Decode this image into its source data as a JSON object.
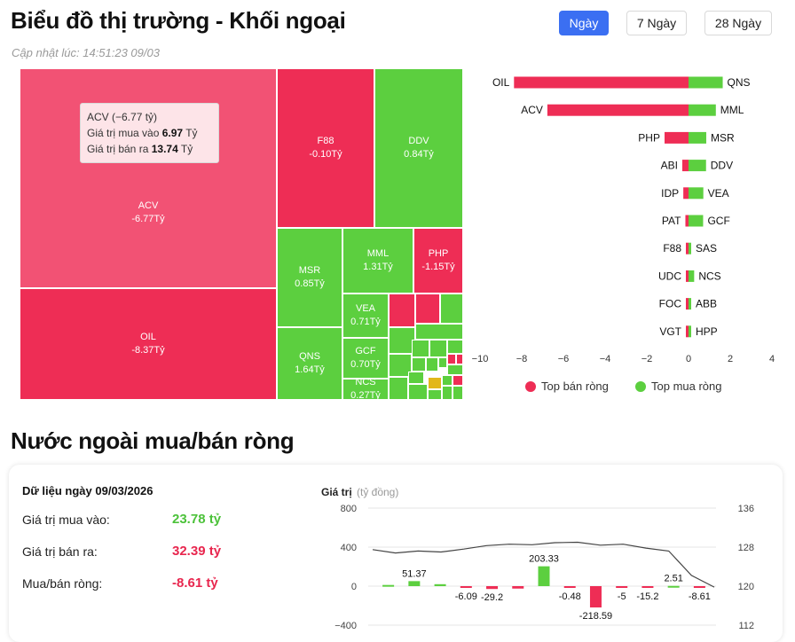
{
  "header": {
    "title": "Biểu đồ thị trường - Khối ngoại",
    "updated": "Cập nhật lúc: 14:51:23 09/03"
  },
  "tabs": [
    {
      "label": "Ngày",
      "active": true
    },
    {
      "label": "7 Ngày"
    },
    {
      "label": "28 Ngày"
    }
  ],
  "treemap": {
    "tiles": [
      {
        "code": "ACV",
        "value": "-6.77Tỷ"
      },
      {
        "code": "OIL",
        "value": "-8.37Tỷ"
      },
      {
        "code": "F88",
        "value": "-0.10Tỷ"
      },
      {
        "code": "DDV",
        "value": "0.84Tỷ"
      },
      {
        "code": "MSR",
        "value": "0.85Tỷ"
      },
      {
        "code": "MML",
        "value": "1.31Tỷ"
      },
      {
        "code": "PHP",
        "value": "-1.15Tỷ"
      },
      {
        "code": "VEA",
        "value": "0.71Tỷ"
      },
      {
        "code": "QNS",
        "value": "1.64Tỷ"
      },
      {
        "code": "GCF",
        "value": "0.70Tỷ"
      },
      {
        "code": "NCS",
        "value": "0.27Tỷ"
      }
    ],
    "tooltip": {
      "title": "ACV (−6.77 tỷ)",
      "buy_label": "Giá trị mua vào",
      "buy_value": "6.97",
      "sell_label": "Giá trị bán ra",
      "sell_value": "13.74",
      "unit": "Tỷ"
    }
  },
  "top_chart": {
    "sell_codes": [
      "OIL",
      "ACV",
      "PHP",
      "ABI",
      "IDP",
      "PAT",
      "F88",
      "UDC",
      "FOC",
      "VGT"
    ],
    "sell_values": [
      -8.37,
      -6.77,
      -1.15,
      -0.3,
      -0.25,
      -0.15,
      -0.1,
      -0.08,
      -0.06,
      -0.05
    ],
    "buy_codes": [
      "QNS",
      "MML",
      "MSR",
      "DDV",
      "VEA",
      "GCF",
      "SAS",
      "NCS",
      "ABB",
      "HPP"
    ],
    "buy_values": [
      1.64,
      1.31,
      0.85,
      0.84,
      0.71,
      0.7,
      0.1,
      0.27,
      0.06,
      0.05
    ],
    "ticks": [
      "−10",
      "−8",
      "−6",
      "−4",
      "−2",
      "0",
      "2",
      "4"
    ],
    "legend_sell": "Top bán ròng",
    "legend_buy": "Top mua ròng",
    "sell_color": "#ee2d55",
    "buy_color": "#5ccf3f"
  },
  "section2": {
    "title": "Nước ngoài mua/bán ròng",
    "date_label": "Dữ liệu ngày 09/03/2026",
    "buy_label": "Giá trị mua vào:",
    "buy_value": "23.78 tỷ",
    "sell_label": "Giá trị bán ra:",
    "sell_value": "32.39 tỷ",
    "net_label": "Mua/bán ròng:",
    "net_value": "-8.61 tỷ"
  },
  "chart_data": {
    "type": "bar",
    "title": "",
    "ylabel": "Giá trị",
    "ylabel_unit": "(tỷ đồng)",
    "left_ticks": [
      "800",
      "400",
      "0",
      "−400"
    ],
    "right_ticks": [
      "136",
      "128",
      "120",
      "112"
    ],
    "ylim": [
      -400,
      800
    ],
    "y2lim": [
      112,
      136
    ],
    "bars": [
      {
        "v": 12,
        "label": ""
      },
      {
        "v": 51.37,
        "label": "51.37"
      },
      {
        "v": 20,
        "label": ""
      },
      {
        "v": -6.09,
        "label": "-6.09"
      },
      {
        "v": -29.2,
        "label": "-29.2"
      },
      {
        "v": -25,
        "label": ""
      },
      {
        "v": 203.33,
        "label": "203.33"
      },
      {
        "v": -0.48,
        "label": "-0.48"
      },
      {
        "v": -218.59,
        "label": "-218.59"
      },
      {
        "v": -5,
        "label": "-5"
      },
      {
        "v": -15.2,
        "label": "-15.2"
      },
      {
        "v": 2.51,
        "label": "2.51"
      },
      {
        "v": -8.61,
        "label": "-8.61"
      }
    ],
    "line": [
      127.5,
      126.8,
      127.2,
      127.0,
      127.6,
      128.3,
      128.6,
      128.5,
      128.9,
      129.0,
      128.4,
      128.6,
      127.8,
      127.2,
      122.2,
      119.8
    ]
  }
}
